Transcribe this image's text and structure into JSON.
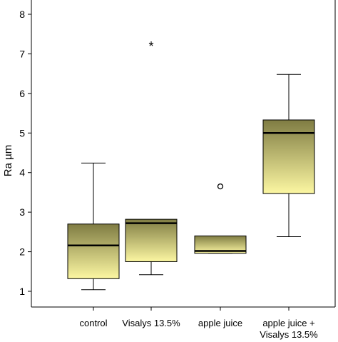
{
  "chart_data": {
    "type": "boxplot",
    "title": "",
    "xlabel": "",
    "ylabel": "Ra µm",
    "ylim": [
      0.5,
      8.3
    ],
    "yticks": [
      1,
      2,
      3,
      4,
      5,
      6,
      7,
      8
    ],
    "grid": false,
    "legend": "none",
    "fill_gradient": [
      "#7f7c43",
      "#fcf7a2"
    ],
    "categories": [
      {
        "label": [
          "control"
        ],
        "min": 1.04,
        "q1": 1.32,
        "median": 2.16,
        "q3": 2.7,
        "max": 4.24,
        "outliers": []
      },
      {
        "label": [
          "Visalys 13.5%"
        ],
        "min": 1.42,
        "q1": 1.75,
        "median": 2.72,
        "q3": 2.82,
        "max": 2.82,
        "outliers": [
          {
            "value": 7.22,
            "symbol": "*"
          }
        ]
      },
      {
        "label": [
          "apple juice"
        ],
        "min": 1.96,
        "q1": 1.96,
        "median": 2.02,
        "q3": 2.4,
        "max": 2.4,
        "outliers": [
          {
            "value": 3.65,
            "symbol": "o"
          }
        ]
      },
      {
        "label": [
          "apple juice +",
          "Visalys 13.5%"
        ],
        "min": 2.38,
        "q1": 3.47,
        "median": 5.0,
        "q3": 5.33,
        "max": 6.48,
        "outliers": []
      }
    ]
  }
}
